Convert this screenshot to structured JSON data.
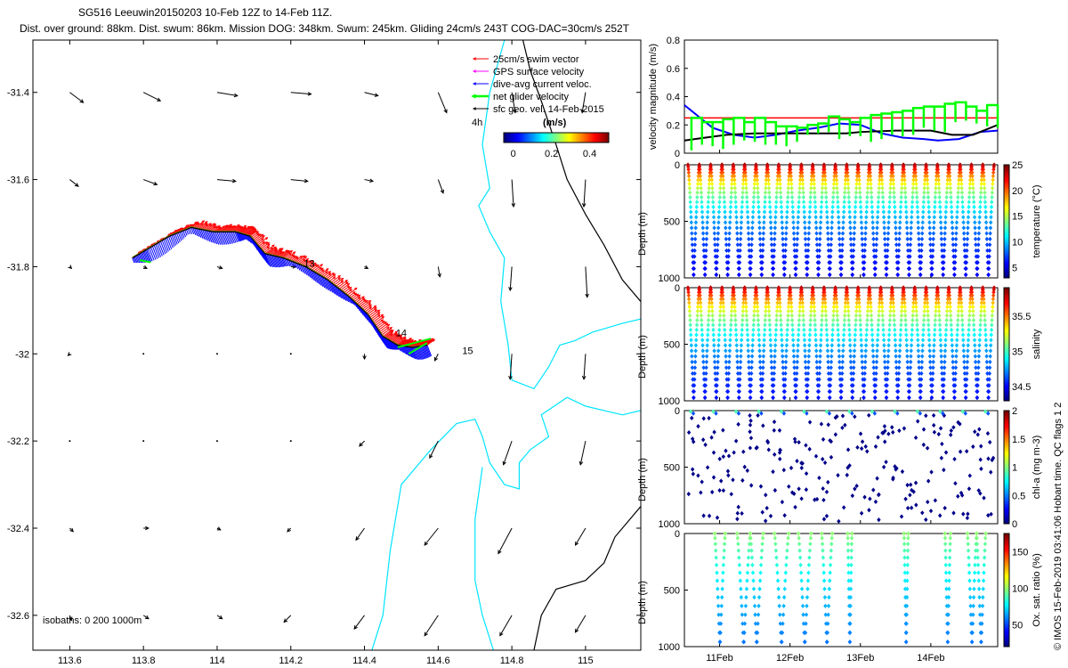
{
  "title": {
    "line1": "SG516 Leeuwin20150203 10-Feb 12Z to 14-Feb 11Z.",
    "line2": "Dist. over ground: 88km. Dist. swum: 86km. Mission DOG: 348km. Swum: 245km. Gliding 24cm/s 243T COG-DAC=30cm/s 252T"
  },
  "credit": "© IMOS 15-Feb-2019 03:41:06 Hobart time. QC flags 1 2",
  "colors": {
    "swim": "#ff0000",
    "gps": "#ff00ff",
    "dac": "#0000ff",
    "net": "#00ff00",
    "sfc": "#000000",
    "isobath_200": "#00e5ff",
    "isobath_1000": "#000000",
    "track": "#000000"
  },
  "chart_data": [
    {
      "id": "map",
      "type": "scatter",
      "title": "",
      "xlim": [
        113.5,
        115.15
      ],
      "ylim": [
        -32.68,
        -31.28
      ],
      "xticks": [
        "113.6",
        "113.8",
        "114",
        "114.2",
        "114.4",
        "114.6",
        "114.8",
        "115"
      ],
      "xtick_values": [
        113.6,
        113.8,
        114.0,
        114.2,
        114.4,
        114.6,
        114.8,
        115.0
      ],
      "yticks": [
        "-31.4",
        "-31.6",
        "-31.8",
        "-32",
        "-32.2",
        "-32.4",
        "-32.6"
      ],
      "ytick_values": [
        -31.4,
        -31.6,
        -31.8,
        -32.0,
        -32.2,
        -32.4,
        -32.6
      ],
      "legend": {
        "items": [
          {
            "label": "25cm/s swim vector",
            "color_key": "swim"
          },
          {
            "label": "GPS surface velocity",
            "color_key": "gps"
          },
          {
            "label": "dive-avg current veloc.",
            "color_key": "dac"
          },
          {
            "label": "net glider velocity",
            "color_key": "net"
          },
          {
            "label": "sfc geo. vel. 14-Feb-2015",
            "color_key": "sfc"
          }
        ],
        "note": "4h",
        "colorbar_label": "(m/s)",
        "colorbar_ticks": [
          "0",
          "0.2",
          "0.4"
        ],
        "colorbar_tick_values": [
          0,
          0.2,
          0.4
        ],
        "colorbar_range": [
          -0.05,
          0.5
        ]
      },
      "isobaths_label": "isobaths: 0   200  1000m",
      "day_labels": [
        {
          "text": "13",
          "lon": 114.25,
          "lat": -31.8
        },
        {
          "text": "14",
          "lon": 114.5,
          "lat": -31.96
        },
        {
          "text": "15",
          "lon": 114.68,
          "lat": -32.0
        }
      ],
      "sfc_grid": {
        "lons": [
          113.6,
          113.8,
          114.0,
          114.2,
          114.4,
          114.6,
          114.8,
          115.0
        ],
        "lats": [
          -31.4,
          -31.6,
          -31.8,
          -32.0,
          -32.2,
          -32.4,
          -32.6
        ],
        "u": [
          [
            0.08,
            0.1,
            0.12,
            0.12,
            0.08,
            0.05,
            0.02,
            -0.02
          ],
          [
            0.05,
            0.08,
            0.11,
            0.1,
            0.05,
            0.03,
            0.01,
            -0.01
          ],
          [
            0.01,
            0.02,
            0.03,
            0.03,
            0.02,
            0.01,
            -0.01,
            0.01
          ],
          [
            -0.01,
            0.0,
            0.0,
            0.0,
            0.0,
            -0.02,
            -0.01,
            -0.01
          ],
          [
            0.01,
            0.01,
            0.01,
            0.0,
            -0.03,
            -0.05,
            -0.05,
            -0.03
          ],
          [
            0.02,
            0.03,
            0.02,
            -0.02,
            -0.05,
            -0.08,
            -0.08,
            -0.06
          ],
          [
            0.01,
            0.03,
            0.03,
            -0.04,
            -0.06,
            -0.08,
            -0.07,
            -0.06
          ]
        ],
        "v": [
          [
            -0.06,
            -0.05,
            -0.02,
            -0.01,
            -0.02,
            -0.12,
            -0.12,
            -0.12
          ],
          [
            -0.04,
            -0.03,
            -0.01,
            -0.01,
            -0.01,
            -0.08,
            -0.16,
            -0.16
          ],
          [
            -0.01,
            -0.01,
            -0.01,
            0.0,
            -0.01,
            -0.06,
            -0.14,
            -0.18
          ],
          [
            -0.01,
            -0.01,
            0.0,
            0.0,
            -0.03,
            -0.04,
            -0.15,
            -0.15
          ],
          [
            0.0,
            0.0,
            0.0,
            -0.01,
            -0.03,
            -0.1,
            -0.14,
            -0.14
          ],
          [
            -0.02,
            0.0,
            -0.01,
            -0.02,
            -0.07,
            -0.1,
            -0.15,
            -0.1
          ],
          [
            -0.03,
            -0.02,
            -0.02,
            -0.04,
            -0.08,
            -0.12,
            -0.12,
            -0.1
          ]
        ]
      },
      "track": {
        "lon": [
          113.77,
          113.81,
          113.87,
          113.93,
          113.99,
          114.05,
          114.09,
          114.13,
          114.18,
          114.24,
          114.3,
          114.36,
          114.41,
          114.45,
          114.49,
          114.53,
          114.57
        ],
        "lat": [
          -31.78,
          -31.76,
          -31.73,
          -31.71,
          -31.72,
          -31.72,
          -31.73,
          -31.77,
          -31.78,
          -31.8,
          -31.83,
          -31.87,
          -31.91,
          -31.96,
          -31.98,
          -31.985,
          -31.98
        ]
      },
      "net_segments": [
        {
          "lon": [
            114.49,
            114.58
          ],
          "lat": [
            -31.985,
            -31.965
          ]
        },
        {
          "lon": [
            114.52,
            114.57
          ],
          "lat": [
            -32.0,
            -31.975
          ]
        },
        {
          "lon": [
            113.79,
            113.82
          ],
          "lat": [
            -31.785,
            -31.79
          ]
        }
      ]
    },
    {
      "id": "velocity",
      "type": "line",
      "ylabel": "velocity magnitude (m/s)",
      "ylim": [
        0,
        0.8
      ],
      "yticks": [
        "0",
        "0.2",
        "0.4",
        "0.6",
        "0.8"
      ],
      "ytick_values": [
        0,
        0.2,
        0.4,
        0.6,
        0.8
      ],
      "xlim": [
        10.5,
        14.95
      ],
      "series": [
        {
          "name": "25cm/s swim",
          "color_key": "swim",
          "x": [
            10.5,
            14.95
          ],
          "y": [
            0.25,
            0.25
          ]
        },
        {
          "name": "dive-avg current",
          "color_key": "dac",
          "x": [
            10.5,
            10.7,
            10.9,
            11.2,
            11.5,
            11.8,
            12.1,
            12.4,
            12.7,
            13.0,
            13.3,
            13.6,
            13.9,
            14.1,
            14.4,
            14.7,
            14.95
          ],
          "y": [
            0.34,
            0.26,
            0.18,
            0.13,
            0.11,
            0.13,
            0.16,
            0.18,
            0.21,
            0.2,
            0.14,
            0.11,
            0.1,
            0.09,
            0.1,
            0.15,
            0.16
          ]
        },
        {
          "name": "sfc geo",
          "color_key": "sfc",
          "x": [
            10.5,
            10.8,
            11.1,
            11.5,
            12.0,
            12.5,
            12.8,
            13.0,
            13.5,
            14.0,
            14.3,
            14.6,
            14.95
          ],
          "y": [
            0.09,
            0.11,
            0.13,
            0.14,
            0.14,
            0.14,
            0.14,
            0.15,
            0.16,
            0.16,
            0.13,
            0.13,
            0.2
          ]
        },
        {
          "name": "net glider",
          "color_key": "net",
          "x": [
            10.6,
            10.75,
            10.9,
            11.05,
            11.2,
            11.35,
            11.5,
            11.65,
            11.8,
            11.95,
            12.1,
            12.25,
            12.4,
            12.55,
            12.7,
            12.85,
            13.0,
            13.15,
            13.3,
            13.45,
            13.6,
            13.75,
            13.9,
            14.05,
            14.2,
            14.35,
            14.5,
            14.65,
            14.8,
            14.95
          ],
          "y": [
            0.25,
            0.22,
            0.22,
            0.24,
            0.25,
            0.22,
            0.25,
            0.22,
            0.19,
            0.19,
            0.18,
            0.2,
            0.21,
            0.26,
            0.24,
            0.22,
            0.25,
            0.27,
            0.28,
            0.29,
            0.3,
            0.32,
            0.33,
            0.33,
            0.35,
            0.36,
            0.33,
            0.3,
            0.34,
            0.34
          ],
          "drops": [
            0.02,
            0.06,
            0.05,
            0.03,
            0.06,
            0.09,
            0.08,
            0.06,
            0.06,
            0.05,
            0.08,
            0.13,
            0.14,
            0.15,
            0.1,
            0.12,
            0.12,
            0.08,
            0.1,
            0.13,
            0.12,
            0.13,
            0.18,
            0.16,
            0.15,
            0.22,
            0.23,
            0.21,
            0.19,
            0.18
          ]
        }
      ]
    },
    {
      "id": "temperature",
      "type": "scatter",
      "ylabel": "Depth (m)",
      "ylim": [
        1000,
        0
      ],
      "yticks": [
        "0",
        "500",
        "1000"
      ],
      "ytick_values": [
        0,
        500,
        1000
      ],
      "colorbar_label": "temperature (°C)",
      "colorbar_range": [
        3,
        25
      ],
      "colorbar_ticks": [
        "5",
        "10",
        "15",
        "20",
        "25"
      ],
      "colorbar_tick_values": [
        5,
        10,
        15,
        20,
        25
      ],
      "profile": {
        "surface_value": 24,
        "deep_value": 4.5,
        "scale_depth": 350
      },
      "casts": 28
    },
    {
      "id": "salinity",
      "type": "scatter",
      "ylabel": "Depth (m)",
      "ylim": [
        1000,
        0
      ],
      "yticks": [
        "0",
        "500",
        "1000"
      ],
      "ytick_values": [
        0,
        500,
        1000
      ],
      "colorbar_label": "salinity",
      "colorbar_range": [
        34.3,
        35.9
      ],
      "colorbar_ticks": [
        "34.5",
        "35",
        "35.5"
      ],
      "colorbar_tick_values": [
        34.5,
        35.0,
        35.5
      ],
      "profile": {
        "surface_value": 35.8,
        "deep_value": 34.4,
        "scale_depth": 400
      },
      "casts": 28
    },
    {
      "id": "chla",
      "type": "scatter",
      "ylabel": "Depth (m)",
      "ylim": [
        1000,
        0
      ],
      "yticks": [
        "0",
        "500",
        "1000"
      ],
      "ytick_values": [
        0,
        500,
        1000
      ],
      "colorbar_label": "chl-a (mg m-3)",
      "colorbar_range": [
        0,
        2
      ],
      "colorbar_ticks": [
        "0",
        "0.5",
        "1",
        "1.5",
        "2"
      ],
      "colorbar_tick_values": [
        0,
        0.5,
        1.0,
        1.5,
        2.0
      ],
      "points_per_cast": 9
    },
    {
      "id": "oxygen",
      "type": "scatter",
      "ylabel": "Depth (m)",
      "ylim": [
        1000,
        0
      ],
      "yticks": [
        "0",
        "500",
        "1000"
      ],
      "ytick_values": [
        0,
        500,
        1000
      ],
      "colorbar_label": "Ox. sat. ratio (%)",
      "colorbar_range": [
        20,
        175
      ],
      "colorbar_ticks": [
        "50",
        "100",
        "150"
      ],
      "colorbar_tick_values": [
        50,
        100,
        150
      ],
      "cast_groups_days": [
        [
          10.93,
          11.08
        ],
        [
          11.25,
          11.62
        ],
        [
          11.78,
          11.98
        ],
        [
          12.12,
          12.3
        ],
        [
          12.45,
          12.6
        ],
        [
          12.82,
          12.88
        ],
        [
          13.62,
          13.68
        ],
        [
          14.2,
          14.28
        ],
        [
          14.52,
          14.78
        ]
      ],
      "xlim": [
        10.5,
        14.95
      ],
      "xticks": [
        "11Feb",
        "12Feb",
        "13Feb",
        "14Feb"
      ],
      "xtick_values": [
        11,
        12,
        13,
        14
      ]
    }
  ]
}
